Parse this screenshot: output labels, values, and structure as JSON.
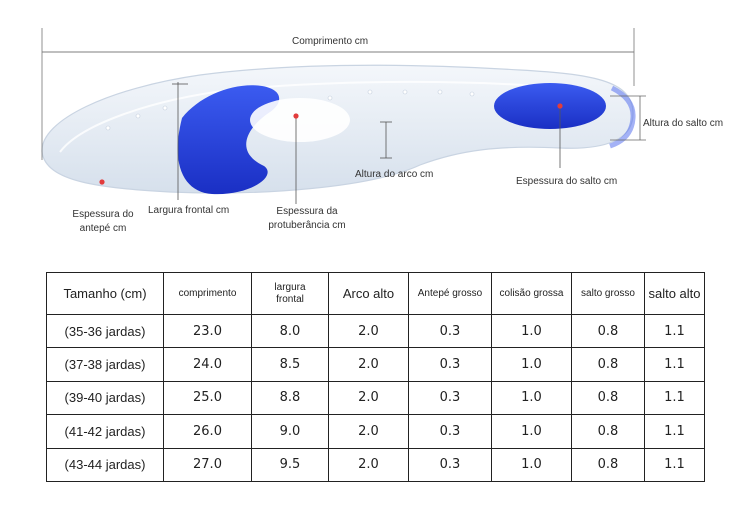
{
  "diagram": {
    "labels": {
      "length": "Comprimento cm",
      "heel_height": "Altura do salto cm",
      "arch_height": "Altura do arco cm",
      "heel_thickness": "Espessura do salto cm",
      "forefoot_thickness": "Espessura do antepé cm",
      "front_width": "Largura frontal cm",
      "protuberance_thickness": "Espessura da protuberância cm"
    },
    "colors": {
      "gel_blue": "#1f3fd8",
      "silicone": "#e6edf4",
      "marker_red": "#e23c3c"
    }
  },
  "table": {
    "headers": [
      "Tamanho (cm)",
      "comprimento",
      "largura frontal",
      "Arco alto",
      "Antepé grosso",
      "colisão grossa",
      "salto grosso",
      "salto alto"
    ],
    "rows": [
      [
        "(35-36 jardas)",
        "23.0",
        "8.0",
        "2.0",
        "0.3",
        "1.0",
        "0.8",
        "1.1"
      ],
      [
        "(37-38 jardas)",
        "24.0",
        "8.5",
        "2.0",
        "0.3",
        "1.0",
        "0.8",
        "1.1"
      ],
      [
        "(39-40 jardas)",
        "25.0",
        "8.8",
        "2.0",
        "0.3",
        "1.0",
        "0.8",
        "1.1"
      ],
      [
        "(41-42 jardas)",
        "26.0",
        "9.0",
        "2.0",
        "0.3",
        "1.0",
        "0.8",
        "1.1"
      ],
      [
        "(43-44 jardas)",
        "27.0",
        "9.5",
        "2.0",
        "0.3",
        "1.0",
        "0.8",
        "1.1"
      ]
    ]
  }
}
